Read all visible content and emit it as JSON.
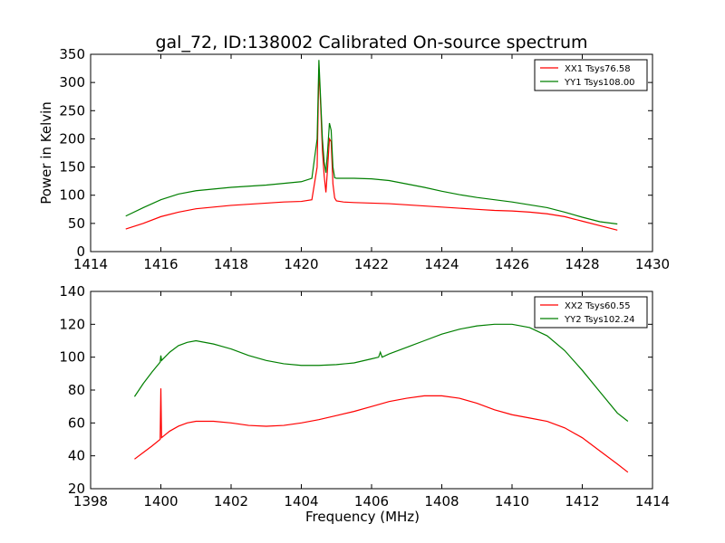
{
  "title": "gal_72, ID:138002 Calibrated On-source spectrum",
  "colors": {
    "red": "#ff0000",
    "green": "#007f00"
  },
  "chart_data": [
    {
      "type": "line",
      "ylabel": "Power in Kelvin",
      "xlabel": "",
      "xlim": [
        1414,
        1430
      ],
      "ylim": [
        0,
        350
      ],
      "xticks": [
        "1414",
        "1416",
        "1418",
        "1420",
        "1422",
        "1424",
        "1426",
        "1428",
        "1430"
      ],
      "yticks": [
        "0",
        "50",
        "100",
        "150",
        "200",
        "250",
        "300",
        "350"
      ],
      "legend_position": "top-right",
      "series": [
        {
          "name": "XX1 Tsys76.58",
          "color": "#ff0000",
          "x": [
            1415.0,
            1415.5,
            1416.0,
            1416.5,
            1417.0,
            1417.5,
            1418.0,
            1418.5,
            1419.0,
            1419.5,
            1420.0,
            1420.3,
            1420.45,
            1420.5,
            1420.55,
            1420.6,
            1420.65,
            1420.7,
            1420.75,
            1420.8,
            1420.85,
            1420.9,
            1420.95,
            1421.0,
            1421.2,
            1421.5,
            1422.0,
            1422.5,
            1423.0,
            1423.5,
            1424.0,
            1424.5,
            1425.0,
            1425.5,
            1426.0,
            1426.5,
            1427.0,
            1427.5,
            1428.0,
            1428.5,
            1429.0
          ],
          "y": [
            40,
            50,
            62,
            70,
            76,
            79,
            82,
            84,
            86,
            88,
            89,
            92,
            150,
            325,
            260,
            180,
            135,
            105,
            150,
            200,
            195,
            120,
            95,
            90,
            88,
            87,
            86,
            85,
            83,
            81,
            79,
            77,
            75,
            73,
            72,
            70,
            67,
            62,
            54,
            46,
            38
          ]
        },
        {
          "name": "YY1 Tsys108.00",
          "color": "#007f00",
          "x": [
            1415.0,
            1415.5,
            1416.0,
            1416.5,
            1417.0,
            1417.5,
            1418.0,
            1418.5,
            1419.0,
            1419.5,
            1420.0,
            1420.3,
            1420.45,
            1420.5,
            1420.55,
            1420.6,
            1420.65,
            1420.7,
            1420.75,
            1420.8,
            1420.85,
            1420.9,
            1420.95,
            1421.0,
            1421.2,
            1421.5,
            1422.0,
            1422.5,
            1423.0,
            1423.5,
            1424.0,
            1424.5,
            1425.0,
            1425.5,
            1426.0,
            1426.5,
            1427.0,
            1427.5,
            1428.0,
            1428.5,
            1429.0
          ],
          "y": [
            63,
            78,
            92,
            102,
            108,
            111,
            114,
            116,
            118,
            121,
            124,
            130,
            200,
            340,
            270,
            200,
            160,
            140,
            180,
            228,
            215,
            150,
            131,
            130,
            130,
            130,
            129,
            126,
            120,
            114,
            107,
            101,
            96,
            92,
            88,
            83,
            78,
            70,
            61,
            53,
            49
          ]
        }
      ]
    },
    {
      "type": "line",
      "ylabel": "",
      "xlabel": "Frequency (MHz)",
      "xlim": [
        1398,
        1414
      ],
      "ylim": [
        20,
        140
      ],
      "xticks": [
        "1398",
        "1400",
        "1402",
        "1404",
        "1406",
        "1408",
        "1410",
        "1412",
        "1414"
      ],
      "yticks": [
        "20",
        "40",
        "60",
        "80",
        "100",
        "120",
        "140"
      ],
      "legend_position": "top-right",
      "series": [
        {
          "name": "XX2 Tsys60.55",
          "color": "#ff0000",
          "x": [
            1399.25,
            1399.5,
            1399.75,
            1399.98,
            1400.0,
            1400.02,
            1400.25,
            1400.5,
            1400.75,
            1401.0,
            1401.5,
            1402.0,
            1402.5,
            1403.0,
            1403.5,
            1404.0,
            1404.5,
            1405.0,
            1405.5,
            1406.0,
            1406.5,
            1407.0,
            1407.5,
            1408.0,
            1408.5,
            1409.0,
            1409.5,
            1410.0,
            1410.5,
            1411.0,
            1411.5,
            1412.0,
            1412.5,
            1413.0,
            1413.3
          ],
          "y": [
            38,
            42,
            46,
            50,
            81,
            51,
            55,
            58,
            60,
            61,
            61,
            60,
            58.5,
            58,
            58.5,
            60,
            62,
            64.5,
            67,
            70,
            73,
            75,
            76.5,
            76.5,
            75,
            72,
            68,
            65,
            63,
            61,
            57,
            51,
            43,
            35,
            30
          ]
        },
        {
          "name": "YY2 Tsys102.24",
          "color": "#007f00",
          "x": [
            1399.25,
            1399.5,
            1399.75,
            1399.98,
            1400.0,
            1400.02,
            1400.25,
            1400.5,
            1400.75,
            1401.0,
            1401.5,
            1402.0,
            1402.5,
            1403.0,
            1403.5,
            1404.0,
            1404.5,
            1405.0,
            1405.5,
            1406.0,
            1406.2,
            1406.25,
            1406.3,
            1406.5,
            1407.0,
            1407.5,
            1408.0,
            1408.5,
            1409.0,
            1409.5,
            1410.0,
            1410.5,
            1411.0,
            1411.5,
            1412.0,
            1412.5,
            1413.0,
            1413.3
          ],
          "y": [
            76,
            84,
            91,
            97,
            101,
            98,
            103,
            107,
            109,
            110,
            108,
            105,
            101,
            98,
            96,
            95,
            95,
            95.5,
            96.5,
            99,
            100,
            103,
            100,
            102,
            106,
            110,
            114,
            117,
            119,
            120,
            120,
            118,
            113,
            104,
            92,
            79,
            66,
            61
          ]
        }
      ]
    }
  ]
}
